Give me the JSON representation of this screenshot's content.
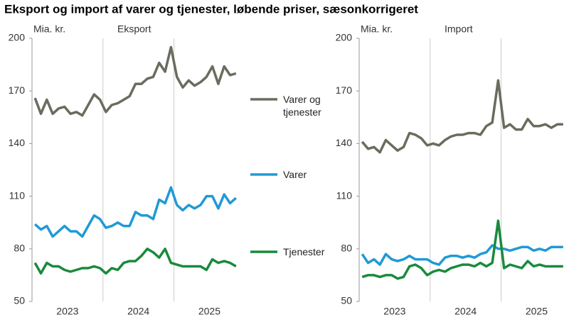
{
  "title": "Eksport og import af varer og tjenester, løbende priser, sæsonkorrigeret",
  "chart_data": [
    {
      "type": "line",
      "title": "Eksport",
      "y_label": "Mia. kr.",
      "categories": [
        null,
        null,
        null,
        null,
        null,
        "2023",
        null,
        null,
        null,
        null,
        null,
        null,
        null,
        null,
        null,
        null,
        null,
        "2024",
        null,
        null,
        null,
        null,
        null,
        null,
        null,
        null,
        null,
        null,
        null,
        "2025",
        null,
        null,
        null,
        null,
        null
      ],
      "ylim": [
        50,
        200
      ],
      "yticks": [
        50,
        80,
        110,
        140,
        170,
        200
      ],
      "series": [
        {
          "name": "Varer og tjenester",
          "color": "#6b6b5e",
          "values": [
            166,
            157,
            165,
            157,
            160,
            161,
            157,
            158,
            156,
            162,
            168,
            165,
            158,
            162,
            163,
            165,
            167,
            174,
            174,
            177,
            178,
            186,
            181,
            195,
            178,
            172,
            176,
            173,
            175,
            178,
            184,
            174,
            184,
            179,
            180
          ]
        },
        {
          "name": "Varer",
          "color": "#1f9ad6",
          "values": [
            94,
            91,
            93,
            87,
            90,
            93,
            90,
            90,
            87,
            93,
            99,
            97,
            92,
            93,
            95,
            93,
            93,
            101,
            99,
            99,
            97,
            108,
            106,
            115,
            105,
            102,
            105,
            103,
            105,
            110,
            110,
            103,
            111,
            106,
            109
          ]
        },
        {
          "name": "Tjenester",
          "color": "#1a8a3c",
          "values": [
            72,
            66,
            72,
            70,
            70,
            68,
            67,
            68,
            69,
            69,
            70,
            69,
            66,
            69,
            68,
            72,
            73,
            73,
            76,
            80,
            78,
            75,
            80,
            72,
            71,
            70,
            70,
            70,
            70,
            68,
            74,
            72,
            73,
            72,
            70
          ]
        }
      ]
    },
    {
      "type": "line",
      "title": "Import",
      "y_label": "Mia. kr.",
      "categories": [
        null,
        null,
        null,
        null,
        null,
        "2023",
        null,
        null,
        null,
        null,
        null,
        null,
        null,
        null,
        null,
        null,
        null,
        "2024",
        null,
        null,
        null,
        null,
        null,
        null,
        null,
        null,
        null,
        null,
        null,
        "2025",
        null,
        null,
        null,
        null,
        null
      ],
      "ylim": [
        50,
        200
      ],
      "yticks": [
        50,
        80,
        110,
        140,
        170,
        200
      ],
      "series": [
        {
          "color": "#6b6b5e",
          "values": [
            141,
            137,
            138,
            135,
            142,
            139,
            136,
            138,
            146,
            145,
            143,
            139,
            140,
            139,
            142,
            144,
            145,
            145,
            146,
            146,
            145,
            150,
            152,
            176,
            149,
            151,
            148,
            148,
            154,
            150,
            150,
            151,
            149,
            151,
            151
          ]
        },
        {
          "color": "#1f9ad6",
          "values": [
            77,
            72,
            74,
            71,
            77,
            74,
            73,
            74,
            76,
            74,
            74,
            74,
            72,
            71,
            75,
            76,
            76,
            75,
            76,
            75,
            77,
            78,
            82,
            80,
            80,
            79,
            80,
            81,
            81,
            79,
            80,
            79,
            81,
            81,
            81
          ]
        },
        {
          "color": "#1a8a3c",
          "values": [
            64,
            65,
            65,
            64,
            65,
            65,
            63,
            64,
            70,
            71,
            69,
            65,
            67,
            68,
            67,
            69,
            70,
            71,
            71,
            70,
            72,
            70,
            72,
            96,
            69,
            71,
            70,
            69,
            73,
            70,
            71,
            70,
            70,
            70,
            70
          ]
        }
      ]
    }
  ]
}
